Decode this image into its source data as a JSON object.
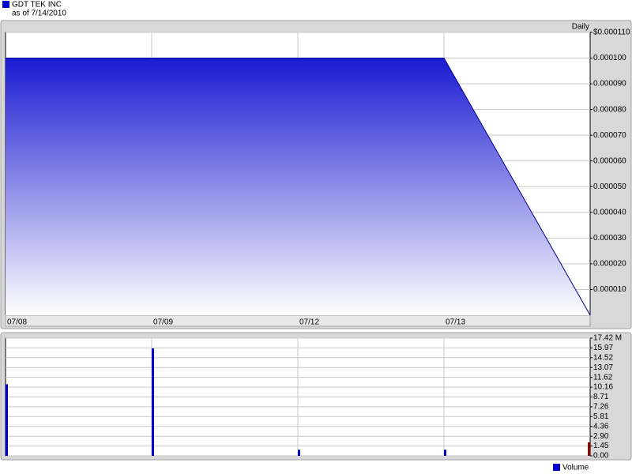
{
  "header": {
    "title": "GDT TEK INC",
    "subtitle": "as of 7/14/2010"
  },
  "chart_data": [
    {
      "type": "area",
      "frequency": "Daily",
      "categories": [
        "07/08",
        "07/09",
        "07/12",
        "07/13",
        null
      ],
      "values": [
        0.0001,
        0.0001,
        0.0001,
        0.0001,
        0
      ],
      "color": "#1a1ad2",
      "line_color": "#00008b",
      "ylim": [
        0,
        0.00011
      ],
      "yticks": [
        {
          "value": 1e-05,
          "label": "0.000010"
        },
        {
          "value": 2e-05,
          "label": "0.000020"
        },
        {
          "value": 3e-05,
          "label": "0.000030"
        },
        {
          "value": 4e-05,
          "label": "0.000040"
        },
        {
          "value": 5e-05,
          "label": "0.000050"
        },
        {
          "value": 6e-05,
          "label": "0.000060"
        },
        {
          "value": 7e-05,
          "label": "0.000070"
        },
        {
          "value": 8e-05,
          "label": "0.000080"
        },
        {
          "value": 9e-05,
          "label": "0.000090"
        },
        {
          "value": 0.0001,
          "label": "0.000100"
        },
        {
          "value": 0.00011,
          "label": "$0.000110"
        }
      ],
      "grid": true
    },
    {
      "type": "bar",
      "series": [
        {
          "name": "Volume",
          "color": "#0000cc",
          "values": [
            10.6,
            15.9,
            0.9,
            0.9,
            2.0
          ]
        }
      ],
      "bar_colors": [
        "#0000cc",
        "#0000cc",
        "#0000cc",
        "#0000cc",
        "#8b0000"
      ],
      "ylim": [
        0,
        17.42
      ],
      "yticks": [
        {
          "value": 0,
          "label": "0.00"
        },
        1.45,
        {
          "value": 2.9,
          "label": "2.90"
        },
        4.36,
        5.81,
        7.26,
        8.71,
        10.16,
        11.62,
        13.07,
        14.52,
        15.97,
        {
          "value": 17.42,
          "label": "17.42 M"
        }
      ],
      "grid": true
    }
  ]
}
